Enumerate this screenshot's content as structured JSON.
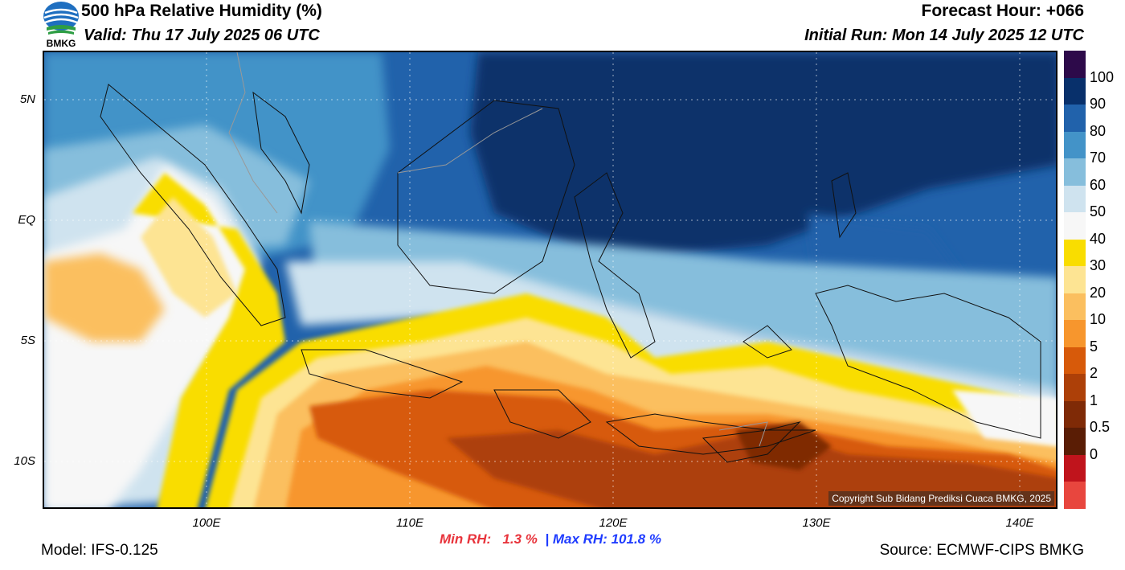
{
  "header": {
    "title": "500 hPa Relative Humidity (%)",
    "valid": "Valid: Thu 17 July 2025 06 UTC",
    "forecast_hour": "Forecast Hour: +066",
    "initial_run": "Initial Run: Mon 14 July 2025 12 UTC"
  },
  "logo": {
    "text": "BMKG",
    "icon": "bmkg-logo-icon"
  },
  "map": {
    "lat_ticks": [
      "5N",
      "EQ",
      "5S",
      "10S"
    ],
    "lon_ticks": [
      "100E",
      "110E",
      "120E",
      "130E",
      "140E"
    ],
    "copyright": "Copyright Sub Bidang Prediksi Cuaca BMKG, 2025"
  },
  "colorbar": {
    "labels": [
      "100",
      "90",
      "80",
      "70",
      "60",
      "50",
      "40",
      "30",
      "20",
      "10",
      "5",
      "2",
      "1",
      "0.5",
      "0"
    ],
    "colors": [
      "#2d0a4a",
      "#08306b",
      "#2162ab",
      "#4393c8",
      "#86bedc",
      "#cfe3ef",
      "#f7f7f7",
      "#f9dd00",
      "#fde493",
      "#fbbf5f",
      "#f7962d",
      "#d75a0a",
      "#ad4008",
      "#7f2a06",
      "#5a1d05",
      "#c0141c",
      "#e8463e"
    ]
  },
  "stats": {
    "min_label": "Min RH:",
    "min_value": "1.3 %",
    "separator": "|",
    "max_label": "Max RH:",
    "max_value": "101.8 %",
    "min_color": "#e8343c",
    "max_color": "#1f3cff"
  },
  "footer": {
    "model": "Model: IFS-0.125",
    "source": "Source: ECMWF-CIPS BMKG"
  }
}
